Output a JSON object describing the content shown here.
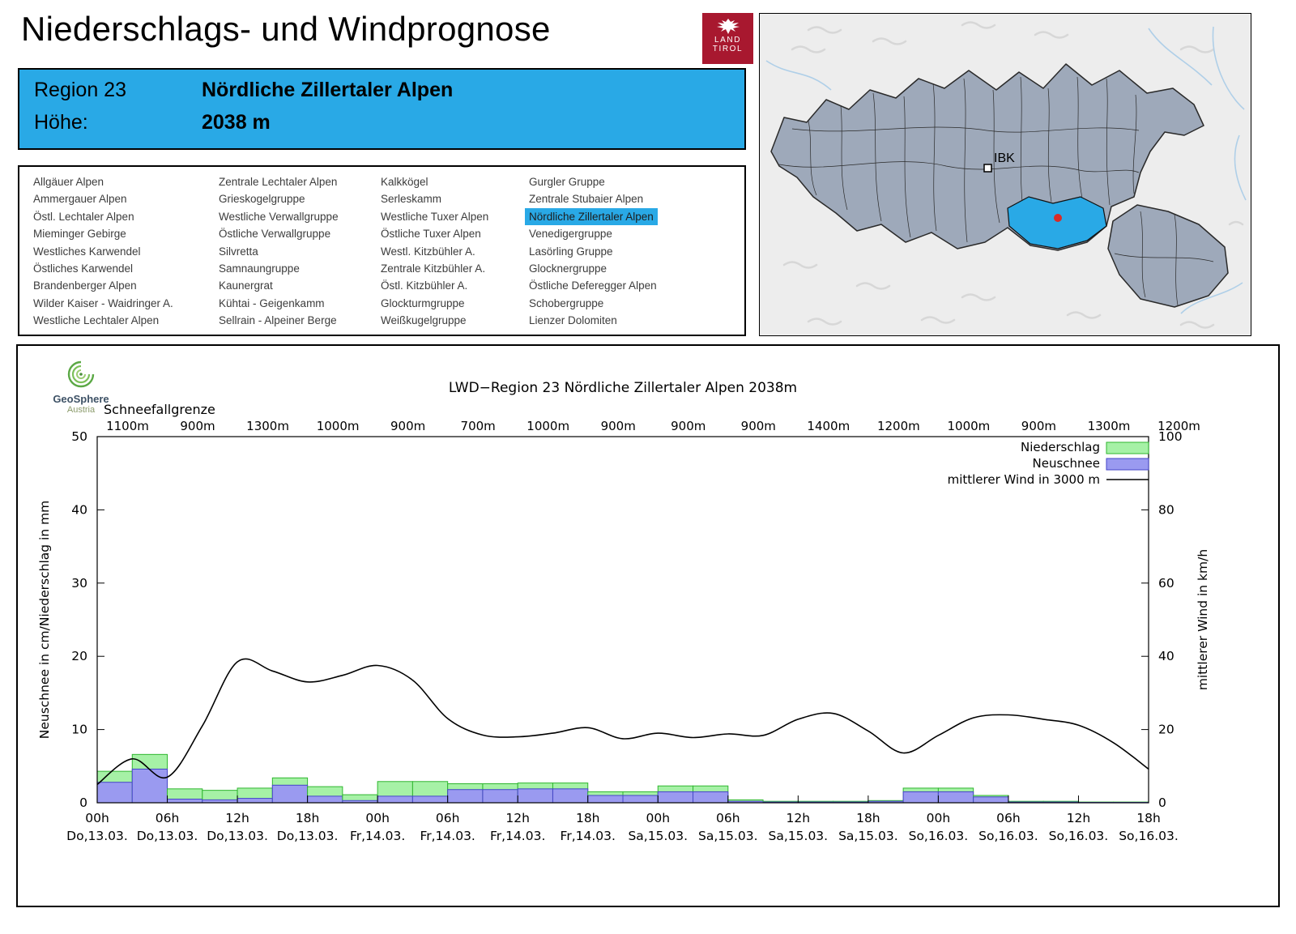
{
  "header": {
    "title": "Niederschlags- und Windprognose",
    "logo": {
      "line1": "LAND",
      "line2": "TIROL"
    }
  },
  "region_info": {
    "region_label": "Region 23",
    "region_name": "Nördliche Zillertaler Alpen",
    "elevation_label": "Höhe:",
    "elevation_value": "2038 m"
  },
  "region_list": {
    "selected": "Nördliche Zillertaler Alpen",
    "columns": [
      [
        "Allgäuer Alpen",
        "Ammergauer Alpen",
        "Östl. Lechtaler Alpen",
        "Mieminger Gebirge",
        "Westliches Karwendel",
        "Östliches Karwendel",
        "Brandenberger Alpen",
        "Wilder Kaiser - Waidringer A.",
        "Westliche Lechtaler Alpen"
      ],
      [
        "Zentrale Lechtaler Alpen",
        "Grieskogelgruppe",
        "Westliche Verwallgruppe",
        "Östliche Verwallgruppe",
        "Silvretta",
        "Samnaungruppe",
        "Kaunergrat",
        "Kühtai - Geigenkamm",
        "Sellrain - Alpeiner Berge"
      ],
      [
        "Kalkkögel",
        "Serleskamm",
        "Westliche Tuxer Alpen",
        "Östliche Tuxer Alpen",
        "Westl. Kitzbühler A.",
        "Zentrale Kitzbühler A.",
        "Östl. Kitzbühler A.",
        "Glockturmgruppe",
        "Weißkugelgruppe"
      ],
      [
        "Gurgler Gruppe",
        "Zentrale Stubaier Alpen",
        "Nördliche Zillertaler Alpen",
        "Venedigergruppe",
        "Lasörling Gruppe",
        "Glocknergruppe",
        "Östliche Deferegger Alpen",
        "Schobergruppe",
        "Lienzer Dolomiten"
      ]
    ]
  },
  "map": {
    "city_label": "IBK"
  },
  "chart": {
    "source": {
      "name": "GeoSphere",
      "sub": "Austria"
    }
  },
  "chart_data": {
    "type": "bar+line composite forecast",
    "title": "LWD−Region 23 Nördliche Zillertaler Alpen 2038m",
    "snowline": {
      "label": "Schneefallgrenze",
      "values_m": [
        1100,
        900,
        1300,
        1000,
        900,
        700,
        1000,
        900,
        900,
        900,
        1400,
        1200,
        1000,
        900,
        1300,
        1200
      ]
    },
    "x_ticks": [
      {
        "time": "00h",
        "date": "Do,13.03."
      },
      {
        "time": "06h",
        "date": "Do,13.03."
      },
      {
        "time": "12h",
        "date": "Do,13.03."
      },
      {
        "time": "18h",
        "date": "Do,13.03."
      },
      {
        "time": "00h",
        "date": "Fr,14.03."
      },
      {
        "time": "06h",
        "date": "Fr,14.03."
      },
      {
        "time": "12h",
        "date": "Fr,14.03."
      },
      {
        "time": "18h",
        "date": "Fr,14.03."
      },
      {
        "time": "00h",
        "date": "Sa,15.03."
      },
      {
        "time": "06h",
        "date": "Sa,15.03."
      },
      {
        "time": "12h",
        "date": "Sa,15.03."
      },
      {
        "time": "18h",
        "date": "Sa,15.03."
      },
      {
        "time": "00h",
        "date": "So,16.03."
      },
      {
        "time": "06h",
        "date": "So,16.03."
      },
      {
        "time": "12h",
        "date": "So,16.03."
      },
      {
        "time": "18h",
        "date": "So,16.03."
      }
    ],
    "bars": {
      "start_hour": 0,
      "step_hours": 3,
      "precip_mm": [
        4.3,
        6.6,
        1.9,
        1.7,
        2.0,
        3.4,
        2.2,
        1.1,
        2.9,
        2.9,
        2.6,
        2.6,
        2.7,
        2.7,
        1.5,
        1.5,
        2.3,
        2.3,
        0.4,
        0.2,
        0.2,
        0.2,
        0.3,
        2.0,
        2.0,
        1.0,
        0.2,
        0.2,
        0.1,
        0.1
      ],
      "snow_cm": [
        2.8,
        4.6,
        0.5,
        0.4,
        0.6,
        2.4,
        0.9,
        0.3,
        0.9,
        0.9,
        1.8,
        1.8,
        1.9,
        1.9,
        1.0,
        1.0,
        1.5,
        1.5,
        0.2,
        0.1,
        0.1,
        0.1,
        0.2,
        1.5,
        1.5,
        0.8,
        0.1,
        0.1,
        0.05,
        0.05
      ]
    },
    "wind": {
      "start_hour": 0,
      "step_hours": 3,
      "kmh": [
        5,
        12,
        7,
        21,
        38.5,
        36,
        33,
        34.8,
        37.5,
        33.5,
        23,
        18.5,
        18,
        19,
        20.5,
        17.5,
        19,
        17.8,
        18.8,
        18.4,
        22.8,
        24.4,
        19.6,
        13.6,
        18.4,
        23.2,
        24,
        22.8,
        21.2,
        16.4,
        9.2
      ]
    },
    "axes": {
      "left_label": "Neuschnee in cm/Niederschlag in mm",
      "left_range": [
        0,
        50
      ],
      "right_label": "mittlerer Wind in km/h",
      "right_range": [
        0,
        100
      ]
    },
    "legend": [
      {
        "label": "Niederschlag",
        "series": "precip"
      },
      {
        "label": "Neuschnee",
        "series": "snow"
      },
      {
        "label": "mittlerer Wind in 3000 m",
        "series": "wind"
      }
    ],
    "colors": {
      "precip_fill": "#A6F1A6",
      "precip_stroke": "#2FB62F",
      "snow_fill": "#9A9AF0",
      "snow_stroke": "#4646C8",
      "wind": "#000000",
      "accent_cyan": "#29A9E6",
      "map_region_fill": "#9EA9BA",
      "logo_red": "#A8182F",
      "station_dot": "#D92B26"
    }
  }
}
